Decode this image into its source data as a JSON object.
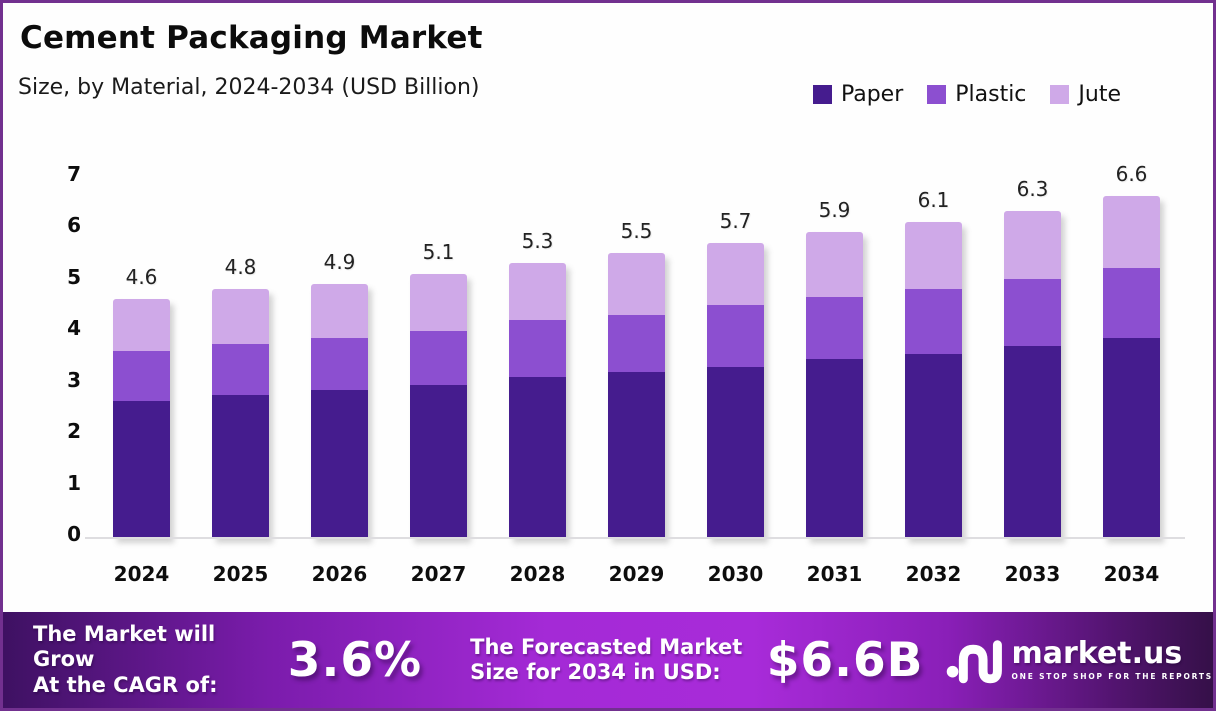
{
  "header": {
    "title": "Cement Packaging Market",
    "subtitle": "Size, by Material, 2024-2034 (USD Billion)"
  },
  "chart_data": {
    "type": "bar",
    "stacked": true,
    "title": "Cement Packaging Market",
    "subtitle": "Size, by Material, 2024-2034 (USD Billion)",
    "unit": "USD Billion",
    "categories": [
      "2024",
      "2025",
      "2026",
      "2027",
      "2028",
      "2029",
      "2030",
      "2031",
      "2032",
      "2033",
      "2034"
    ],
    "series": [
      {
        "name": "Paper",
        "color": "#451C8E",
        "values": [
          2.65,
          2.75,
          2.85,
          2.95,
          3.1,
          3.2,
          3.3,
          3.45,
          3.55,
          3.7,
          3.85
        ]
      },
      {
        "name": "Plastic",
        "color": "#8C4FD0",
        "values": [
          0.95,
          1.0,
          1.0,
          1.05,
          1.1,
          1.1,
          1.2,
          1.2,
          1.25,
          1.3,
          1.35
        ]
      },
      {
        "name": "Jute",
        "color": "#CFA9E8",
        "values": [
          1.0,
          1.05,
          1.05,
          1.1,
          1.1,
          1.2,
          1.2,
          1.25,
          1.3,
          1.3,
          1.4
        ]
      }
    ],
    "totals": [
      4.6,
      4.8,
      4.9,
      5.1,
      5.3,
      5.5,
      5.7,
      5.9,
      6.1,
      6.3,
      6.6
    ],
    "xlabel": "",
    "ylabel": "",
    "ylim": [
      0,
      7
    ],
    "yticks": [
      0,
      1,
      2,
      3,
      4,
      5,
      6,
      7
    ],
    "grid": false,
    "legend_position": "top-right"
  },
  "banner": {
    "cagr_label_line1": "The Market will Grow",
    "cagr_label_line2": "At the CAGR of:",
    "cagr_value": "3.6%",
    "forecast_label_line1": "The Forecasted Market",
    "forecast_label_line2": "Size for 2034 in USD:",
    "forecast_value": "$6.6B",
    "brand_name": "market.us",
    "brand_tagline": "ONE STOP SHOP FOR THE REPORTS"
  },
  "colors": {
    "frame_border": "#72308F",
    "banner_gradient_start": "#3E1162",
    "banner_gradient_mid": "#A82BD9",
    "banner_gradient_end": "#351048",
    "baseline": "#DEDDE0"
  }
}
